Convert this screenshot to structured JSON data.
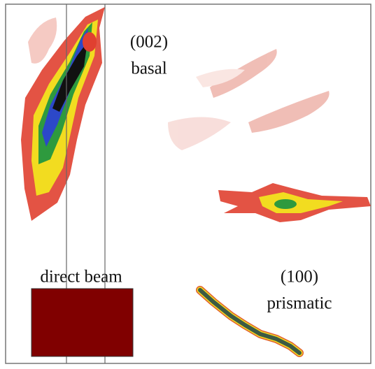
{
  "peaks": [
    {
      "index": "(002)",
      "name": "basal"
    },
    {
      "index": "(100)",
      "name": "prismatic"
    }
  ],
  "direct_beam": {
    "label": "direct beam"
  }
}
